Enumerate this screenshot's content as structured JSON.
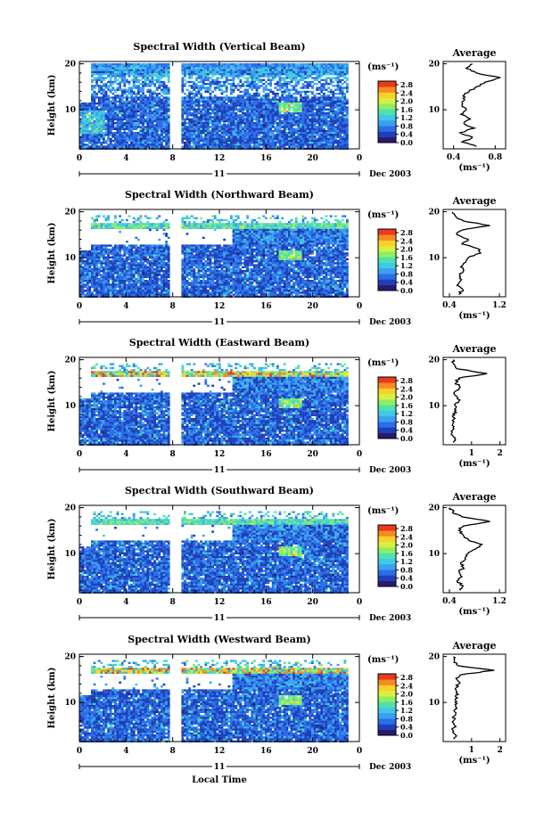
{
  "figure": {
    "date_label": "Dec 2003",
    "day_label": "11",
    "bottom_xlabel": "Local Time"
  },
  "colorbar": {
    "unit_label": "(ms⁻¹)",
    "tick_labels": [
      "0.0",
      "0.4",
      "0.8",
      "1.2",
      "1.6",
      "2.0",
      "2.4",
      "2.8"
    ],
    "colors": [
      "#2a1a6e",
      "#1f3fb8",
      "#2a6ee8",
      "#3aa0f0",
      "#40c8e6",
      "#4fe0b0",
      "#8fee60",
      "#d8f040",
      "#fcd02a",
      "#f88a22",
      "#e83a1e"
    ]
  },
  "chart_data": [
    {
      "type": "heatmap",
      "title": "Spectral Width (Vertical Beam)",
      "ylabel": "Height (km)",
      "x_ticks": [
        "0",
        "4",
        "8",
        "12",
        "16",
        "20",
        "0"
      ],
      "y_ticks": [
        "20",
        "10"
      ],
      "xlim": [
        0,
        24
      ],
      "ylim": [
        1.5,
        20.5
      ],
      "unit": "ms-1",
      "zlim": [
        0,
        2.8
      ],
      "average": {
        "title": "Average",
        "xlabel": "(ms⁻¹)",
        "x_ticks": [
          "0.4",
          "0.8"
        ],
        "xlim": [
          0.3,
          0.9
        ],
        "profile": [
          [
            2,
            0.62
          ],
          [
            3,
            0.48
          ],
          [
            4,
            0.58
          ],
          [
            5,
            0.46
          ],
          [
            6,
            0.6
          ],
          [
            7,
            0.5
          ],
          [
            8,
            0.56
          ],
          [
            9,
            0.47
          ],
          [
            10,
            0.52
          ],
          [
            11,
            0.48
          ],
          [
            12,
            0.5
          ],
          [
            13,
            0.49
          ],
          [
            14,
            0.55
          ],
          [
            15,
            0.62
          ],
          [
            16,
            0.7
          ],
          [
            17,
            0.85
          ],
          [
            18,
            0.62
          ],
          [
            19,
            0.52
          ],
          [
            20,
            0.58
          ]
        ]
      }
    },
    {
      "type": "heatmap",
      "title": "Spectral Width (Northward Beam)",
      "ylabel": "Height (km)",
      "x_ticks": [
        "0",
        "4",
        "8",
        "12",
        "16",
        "20",
        "0"
      ],
      "y_ticks": [
        "20",
        "10"
      ],
      "xlim": [
        0,
        24
      ],
      "ylim": [
        1.5,
        20.5
      ],
      "unit": "ms-1",
      "zlim": [
        0,
        2.8
      ],
      "average": {
        "title": "Average",
        "xlabel": "(ms⁻¹)",
        "x_ticks": [
          "0.4",
          "1.2"
        ],
        "xlim": [
          0.3,
          1.3
        ],
        "profile": [
          [
            2,
            0.55
          ],
          [
            3,
            0.62
          ],
          [
            4,
            0.52
          ],
          [
            5,
            0.58
          ],
          [
            6,
            0.56
          ],
          [
            7,
            0.62
          ],
          [
            8,
            0.58
          ],
          [
            9,
            0.66
          ],
          [
            10,
            0.7
          ],
          [
            11,
            0.9
          ],
          [
            12,
            0.85
          ],
          [
            13,
            0.6
          ],
          [
            14,
            0.7
          ],
          [
            15,
            0.52
          ],
          [
            16,
            0.6
          ],
          [
            17,
            1.05
          ],
          [
            18,
            0.62
          ],
          [
            19,
            0.5
          ],
          [
            20,
            0.45
          ]
        ]
      }
    },
    {
      "type": "heatmap",
      "title": "Spectral Width (Eastward Beam)",
      "ylabel": "Height (km)",
      "x_ticks": [
        "0",
        "4",
        "8",
        "12",
        "16",
        "20",
        "0"
      ],
      "y_ticks": [
        "20",
        "10"
      ],
      "xlim": [
        0,
        24
      ],
      "ylim": [
        1.5,
        20.5
      ],
      "unit": "ms-1",
      "zlim": [
        0,
        2.8
      ],
      "average": {
        "title": "Average",
        "xlabel": "(ms⁻¹)",
        "x_ticks": [
          "1",
          "2"
        ],
        "xlim": [
          0,
          2.2
        ],
        "profile": [
          [
            2,
            0.35
          ],
          [
            3,
            0.42
          ],
          [
            4,
            0.3
          ],
          [
            5,
            0.38
          ],
          [
            6,
            0.34
          ],
          [
            7,
            0.36
          ],
          [
            8,
            0.4
          ],
          [
            9,
            0.45
          ],
          [
            10,
            0.42
          ],
          [
            11,
            0.55
          ],
          [
            12,
            0.48
          ],
          [
            13,
            0.4
          ],
          [
            14,
            0.6
          ],
          [
            15,
            0.45
          ],
          [
            16,
            0.55
          ],
          [
            17,
            1.55
          ],
          [
            18,
            0.5
          ],
          [
            19,
            0.38
          ],
          [
            20,
            0.35
          ]
        ]
      }
    },
    {
      "type": "heatmap",
      "title": "Spectral Width (Southward Beam)",
      "ylabel": "Height (km)",
      "x_ticks": [
        "0",
        "4",
        "8",
        "12",
        "16",
        "20",
        "0"
      ],
      "y_ticks": [
        "20",
        "10"
      ],
      "xlim": [
        0,
        24
      ],
      "ylim": [
        1.5,
        20.5
      ],
      "unit": "ms-1",
      "zlim": [
        0,
        2.8
      ],
      "average": {
        "title": "Average",
        "xlabel": "(ms⁻¹)",
        "x_ticks": [
          "0.4",
          "1.2"
        ],
        "xlim": [
          0.3,
          1.3
        ],
        "profile": [
          [
            2,
            0.58
          ],
          [
            3,
            0.62
          ],
          [
            4,
            0.52
          ],
          [
            5,
            0.6
          ],
          [
            6,
            0.56
          ],
          [
            7,
            0.62
          ],
          [
            8,
            0.58
          ],
          [
            9,
            0.65
          ],
          [
            10,
            0.7
          ],
          [
            11,
            0.82
          ],
          [
            12,
            0.92
          ],
          [
            13,
            0.7
          ],
          [
            14,
            0.62
          ],
          [
            15,
            0.55
          ],
          [
            16,
            0.62
          ],
          [
            17,
            1.05
          ],
          [
            18,
            0.6
          ],
          [
            19,
            0.45
          ],
          [
            20,
            0.42
          ]
        ]
      }
    },
    {
      "type": "heatmap",
      "title": "Spectral Width (Westward Beam)",
      "ylabel": "Height (km)",
      "x_ticks": [
        "0",
        "4",
        "8",
        "12",
        "16",
        "20",
        "0"
      ],
      "y_ticks": [
        "20",
        "10"
      ],
      "xlim": [
        0,
        24
      ],
      "ylim": [
        1.5,
        20.5
      ],
      "unit": "ms-1",
      "zlim": [
        0,
        2.8
      ],
      "average": {
        "title": "Average",
        "xlabel": "(ms⁻¹)",
        "x_ticks": [
          "1",
          "2"
        ],
        "xlim": [
          0,
          2.2
        ],
        "profile": [
          [
            2,
            0.38
          ],
          [
            3,
            0.42
          ],
          [
            4,
            0.34
          ],
          [
            5,
            0.4
          ],
          [
            6,
            0.36
          ],
          [
            7,
            0.38
          ],
          [
            8,
            0.4
          ],
          [
            9,
            0.44
          ],
          [
            10,
            0.42
          ],
          [
            11,
            0.5
          ],
          [
            12,
            0.46
          ],
          [
            13,
            0.42
          ],
          [
            14,
            0.55
          ],
          [
            15,
            0.48
          ],
          [
            16,
            0.6
          ],
          [
            17,
            1.8
          ],
          [
            18,
            0.52
          ],
          [
            19,
            0.4
          ],
          [
            20,
            0.36
          ]
        ]
      }
    }
  ]
}
